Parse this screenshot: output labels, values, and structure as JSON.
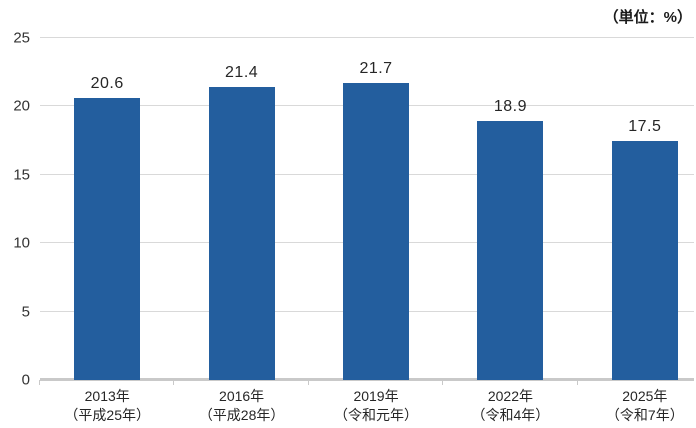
{
  "unit_label": "（単位：%）",
  "chart_data": {
    "type": "bar",
    "title": "",
    "unit": "（単位：%）",
    "categories": [
      {
        "line1": "2013年",
        "line2": "（平成25年）"
      },
      {
        "line1": "2016年",
        "line2": "（平成28年）"
      },
      {
        "line1": "2019年",
        "line2": "（令和元年）"
      },
      {
        "line1": "2022年",
        "line2": "（令和4年）"
      },
      {
        "line1": "2025年",
        "line2": "（令和7年）"
      }
    ],
    "values": [
      20.6,
      21.4,
      21.7,
      18.9,
      17.5
    ],
    "value_labels": [
      "20.6",
      "21.4",
      "21.7",
      "18.9",
      "17.5"
    ],
    "yticks": [
      0,
      5,
      10,
      15,
      20,
      25
    ],
    "ylim": [
      0,
      25
    ],
    "grid": true,
    "legend": "none",
    "colors": {
      "bar": "#235e9e",
      "gridline": "#d9d9d9",
      "axis": "#c9c9c9",
      "text": "#262626"
    }
  }
}
